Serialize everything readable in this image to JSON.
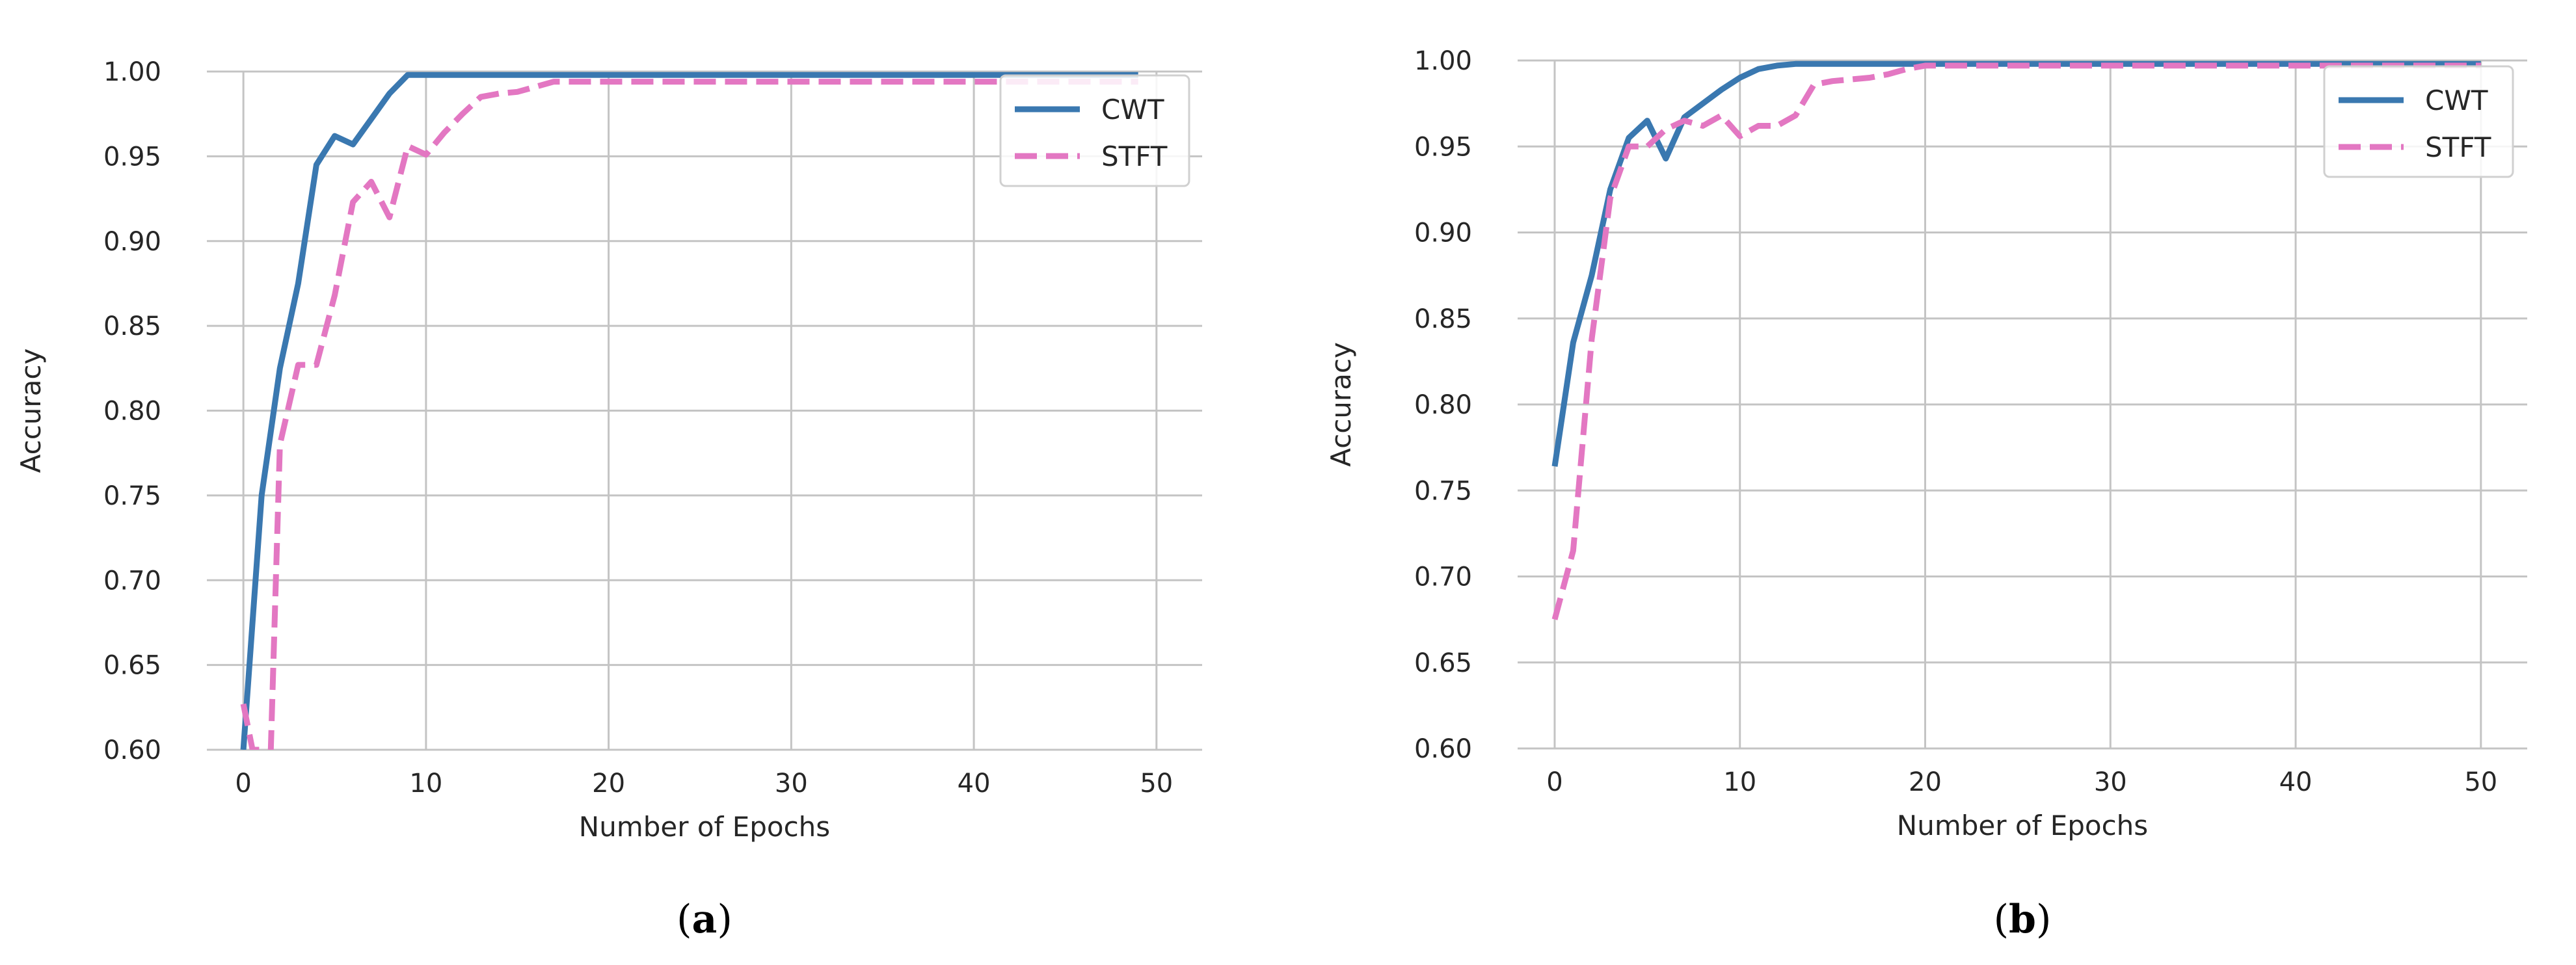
{
  "colors": {
    "cwt": "#3a78b0",
    "stft": "#e377c2",
    "grid": "#c4c4c4"
  },
  "panels": [
    {
      "label": "a",
      "open_paren": "(",
      "close_paren": ")"
    },
    {
      "label": "b",
      "open_paren": "(",
      "close_paren": ")"
    }
  ],
  "chart_data": [
    {
      "type": "line",
      "title": "",
      "xlabel": "Number of Epochs",
      "ylabel": "Accuracy",
      "xlim": [
        -2,
        52.5
      ],
      "ylim": [
        0.6,
        1.0
      ],
      "xticks": [
        0,
        10,
        20,
        30,
        40,
        50
      ],
      "yticks": [
        0.6,
        0.65,
        0.7,
        0.75,
        0.8,
        0.85,
        0.9,
        0.95,
        1.0
      ],
      "xtick_labels": [
        "0",
        "10",
        "20",
        "30",
        "40",
        "50"
      ],
      "ytick_labels": [
        "0.60",
        "0.65",
        "0.70",
        "0.75",
        "0.80",
        "0.85",
        "0.90",
        "0.95",
        "1.00"
      ],
      "grid": true,
      "legend": "top-right",
      "series": [
        {
          "name": "CWT",
          "style": "solid",
          "x": [
            0,
            1,
            2,
            3,
            4,
            5,
            6,
            7,
            8,
            9,
            10,
            11,
            12,
            13,
            14,
            15,
            16,
            17,
            18,
            19,
            20,
            25,
            30,
            35,
            40,
            45,
            49
          ],
          "y": [
            0.6,
            0.75,
            0.825,
            0.875,
            0.945,
            0.962,
            0.957,
            0.972,
            0.987,
            0.998,
            0.998,
            0.998,
            0.998,
            0.998,
            0.998,
            0.998,
            0.998,
            0.998,
            0.998,
            0.998,
            0.998,
            0.998,
            0.998,
            0.998,
            0.998,
            0.998,
            0.998
          ]
        },
        {
          "name": "STFT",
          "style": "dashed",
          "x": [
            0,
            0.5,
            1,
            1.5,
            2,
            3,
            4,
            5,
            6,
            7,
            8,
            9,
            10,
            11,
            12,
            13,
            14,
            15,
            16,
            17,
            18,
            20,
            25,
            30,
            40,
            49
          ],
          "y": [
            0.627,
            0.6,
            0.6,
            0.6,
            0.78,
            0.827,
            0.827,
            0.868,
            0.923,
            0.935,
            0.914,
            0.956,
            0.951,
            0.964,
            0.975,
            0.985,
            0.987,
            0.988,
            0.991,
            0.994,
            0.994,
            0.994,
            0.994,
            0.994,
            0.994,
            0.994
          ]
        }
      ]
    },
    {
      "type": "line",
      "title": "",
      "xlabel": "Number of Epochs",
      "ylabel": "Accuracy",
      "xlim": [
        -2,
        52.5
      ],
      "ylim": [
        0.6,
        1.0
      ],
      "xticks": [
        0,
        10,
        20,
        30,
        40,
        50
      ],
      "yticks": [
        0.6,
        0.65,
        0.7,
        0.75,
        0.8,
        0.85,
        0.9,
        0.95,
        1.0
      ],
      "xtick_labels": [
        "0",
        "10",
        "20",
        "30",
        "40",
        "50"
      ],
      "ytick_labels": [
        "0.60",
        "0.65",
        "0.70",
        "0.75",
        "0.80",
        "0.85",
        "0.90",
        "0.95",
        "1.00"
      ],
      "grid": true,
      "legend": "top-right",
      "series": [
        {
          "name": "CWT",
          "style": "solid",
          "x": [
            0,
            1,
            2,
            3,
            4,
            5,
            6,
            7,
            8,
            9,
            10,
            11,
            12,
            13,
            14,
            15,
            20,
            30,
            40,
            50
          ],
          "y": [
            0.764,
            0.836,
            0.875,
            0.925,
            0.955,
            0.965,
            0.943,
            0.967,
            0.975,
            0.983,
            0.99,
            0.995,
            0.997,
            0.998,
            0.998,
            0.998,
            0.998,
            0.998,
            0.998,
            0.998
          ]
        },
        {
          "name": "STFT",
          "style": "dashed",
          "x": [
            0,
            1,
            2,
            3,
            4,
            5,
            6,
            7,
            8,
            9,
            10,
            11,
            12,
            13,
            14,
            15,
            16,
            17,
            18,
            19,
            20,
            25,
            30,
            40,
            50
          ],
          "y": [
            0.675,
            0.715,
            0.838,
            0.92,
            0.95,
            0.95,
            0.96,
            0.965,
            0.962,
            0.968,
            0.956,
            0.962,
            0.962,
            0.968,
            0.986,
            0.988,
            0.989,
            0.99,
            0.992,
            0.995,
            0.997,
            0.997,
            0.997,
            0.997,
            0.997
          ]
        }
      ]
    }
  ]
}
